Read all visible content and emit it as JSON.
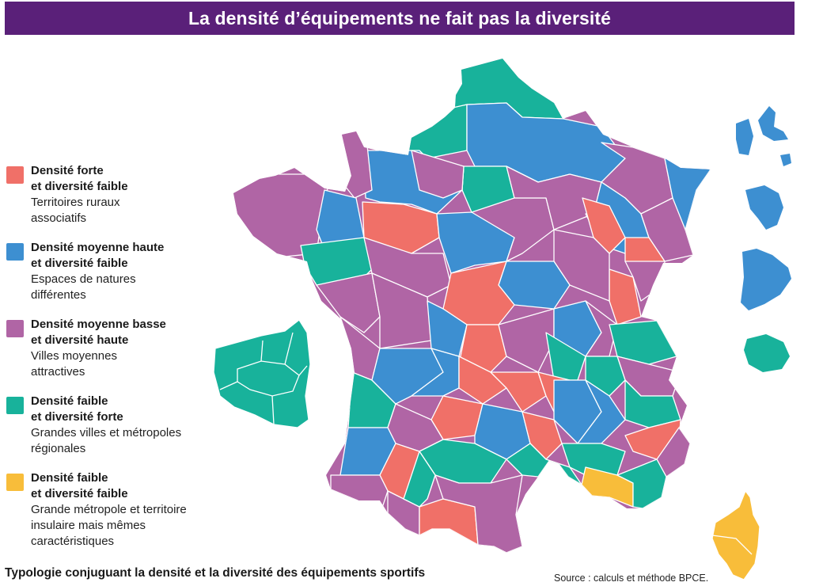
{
  "title": "La densité d’équipements ne fait pas la diversité",
  "colors": {
    "title_bg": "#5a2079",
    "forte_faible": "#f07068",
    "moyenne_haute_faible": "#3d8fd1",
    "moyenne_basse_haute": "#b065a5",
    "faible_forte": "#18b29b",
    "faible_faible": "#f8bd3a"
  },
  "legend": [
    {
      "line1": "Densité forte",
      "line2": "et diversité faible",
      "sub": [
        "Territoires ruraux",
        "associatifs"
      ],
      "color": "#f07068"
    },
    {
      "line1": "Densité moyenne haute",
      "line2": "et diversité faible",
      "sub": [
        "Espaces de natures",
        "différentes"
      ],
      "color": "#3d8fd1"
    },
    {
      "line1": "Densité moyenne basse",
      "line2": "et diversité haute",
      "sub": [
        "Villes moyennes",
        "attractives"
      ],
      "color": "#b065a5"
    },
    {
      "line1": "Densité faible",
      "line2": "et diversité forte",
      "sub": [
        "Grandes villes et métropoles",
        "régionales"
      ],
      "color": "#18b29b"
    },
    {
      "line1": "Densité faible",
      "line2": "et diversité faible",
      "sub": [
        "Grande métropole et territoire",
        "insulaire mais mêmes",
        "caractéristiques"
      ],
      "color": "#f8bd3a"
    }
  ],
  "footer": {
    "caption": "Typologie conjuguant la densité et la diversité des équipements sportifs",
    "source": "Source : calculs et méthode BPCE."
  }
}
